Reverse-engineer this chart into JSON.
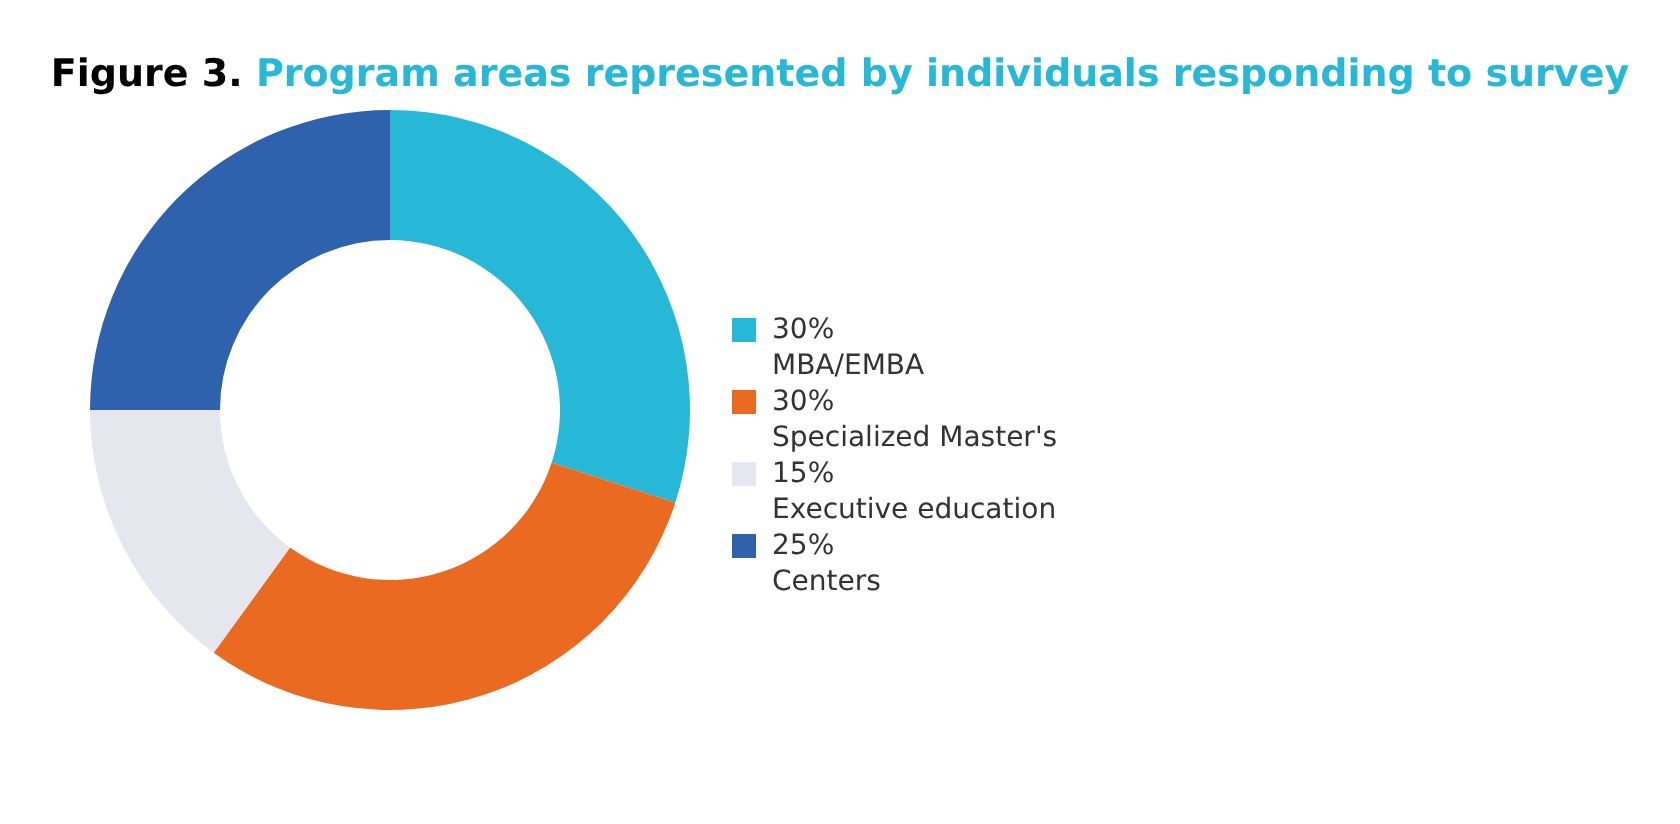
{
  "chart_data": {
    "type": "donut",
    "title": "Figure 3. Program areas represented by individuals responding to survey",
    "categories": [
      "MBA/EMBA",
      "Specialized Master's",
      "Executive education",
      "Centers"
    ],
    "values": [
      30,
      30,
      15,
      25
    ],
    "value_labels": [
      "30%",
      "30%",
      "15%",
      "25%"
    ],
    "colors": [
      "#27b8d8",
      "#ea6a22",
      "#e6e7ee",
      "#2e62ad"
    ],
    "legend": "right"
  }
}
